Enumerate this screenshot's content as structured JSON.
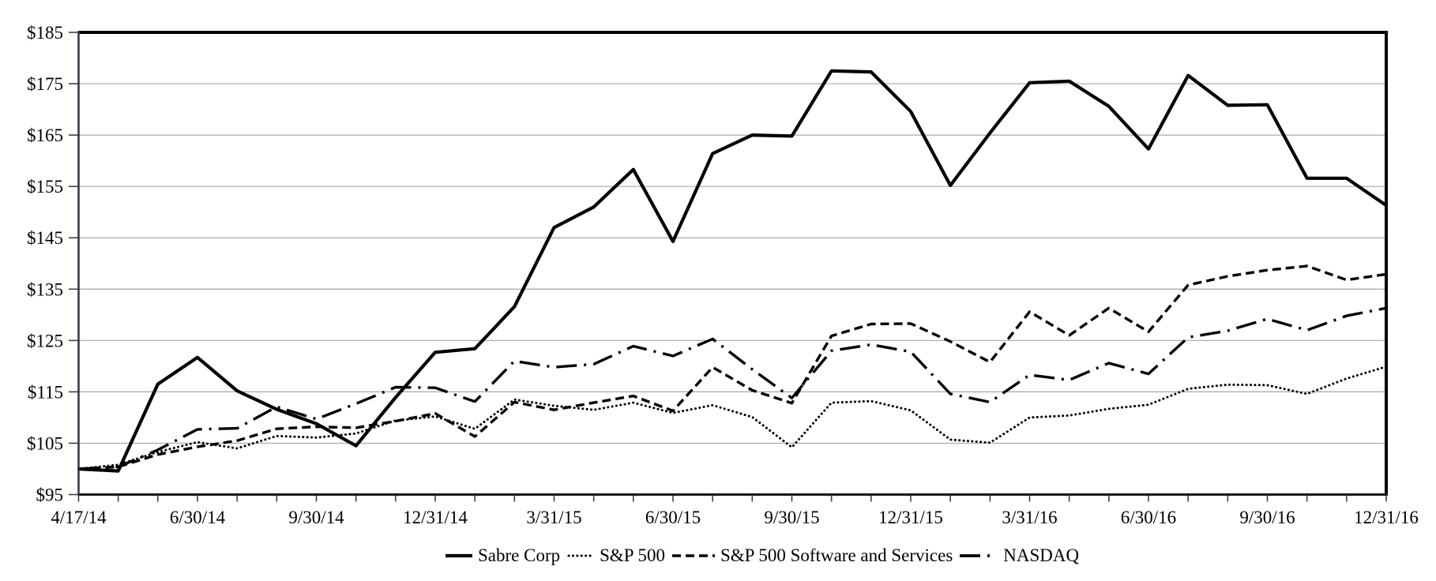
{
  "chart_data": {
    "type": "line",
    "title": "",
    "xlabel": "",
    "ylabel": "",
    "grid": true,
    "legend_position": "bottom",
    "colors": {
      "line": "#000000",
      "grid": "#a6a6a6",
      "axis": "#1a1a1a",
      "background": "#ffffff"
    },
    "y_axis": {
      "min": 95,
      "max": 185,
      "step": 10,
      "tick_labels": [
        "$95",
        "$105",
        "$115",
        "$125",
        "$135",
        "$145",
        "$155",
        "$165",
        "$175",
        "$185"
      ]
    },
    "x_axis": {
      "num_points": 34,
      "minor_tick_every_point": true,
      "tick_label_positions": [
        0,
        3,
        6,
        9,
        12,
        15,
        18,
        21,
        24,
        27,
        30,
        33
      ],
      "tick_labels": [
        "4/17/14",
        "6/30/14",
        "9/30/14",
        "12/31/14",
        "3/31/15",
        "6/30/15",
        "9/30/15",
        "12/31/15",
        "3/31/16",
        "6/30/16",
        "9/30/16",
        "12/31/16"
      ]
    },
    "series": [
      {
        "name": "Sabre Corp",
        "style": "solid",
        "values": [
          100,
          99.6,
          116.5,
          121.7,
          115.2,
          111.6,
          108.8,
          104.5,
          113.9,
          122.7,
          123.4,
          131.6,
          147.0,
          151.0,
          158.3,
          144.3,
          161.4,
          165.0,
          164.8,
          177.5,
          177.3,
          169.6,
          155.2,
          165.4,
          175.2,
          175.5,
          170.6,
          162.3,
          176.6,
          170.8,
          170.9,
          156.6,
          156.6,
          151.3
        ]
      },
      {
        "name": "S&P 500",
        "style": "dotted",
        "values": [
          100,
          100.8,
          103.3,
          105.2,
          104.0,
          106.4,
          106.1,
          106.9,
          109.4,
          110.2,
          107.8,
          113.5,
          112.3,
          111.5,
          112.9,
          110.9,
          112.4,
          110.1,
          104.2,
          112.9,
          113.2,
          111.4,
          105.7,
          105.1,
          110.0,
          110.4,
          111.7,
          112.5,
          115.6,
          116.4,
          116.3,
          114.6,
          117.6,
          119.9
        ]
      },
      {
        "name": "S&P 500 Software and Services",
        "style": "dashed",
        "values": [
          100,
          100.4,
          102.8,
          104.3,
          105.5,
          107.8,
          108.2,
          108.0,
          109.3,
          110.8,
          106.3,
          113.0,
          111.5,
          112.9,
          114.2,
          111.3,
          119.8,
          115.3,
          112.8,
          125.9,
          128.2,
          128.3,
          124.8,
          120.8,
          130.6,
          126.0,
          131.3,
          126.7,
          135.8,
          137.5,
          138.7,
          139.5,
          136.8,
          137.9
        ]
      },
      {
        "name": "NASDAQ",
        "style": "dashdot",
        "values": [
          100,
          100.4,
          103.7,
          107.7,
          107.9,
          112.1,
          109.7,
          112.7,
          115.9,
          115.8,
          113.1,
          121.0,
          119.8,
          120.4,
          123.9,
          122.0,
          125.3,
          119.4,
          113.8,
          123.0,
          124.2,
          122.8,
          114.6,
          113.0,
          118.3,
          117.3,
          120.6,
          118.5,
          125.6,
          126.9,
          129.2,
          127.0,
          129.8,
          131.3
        ]
      }
    ]
  }
}
